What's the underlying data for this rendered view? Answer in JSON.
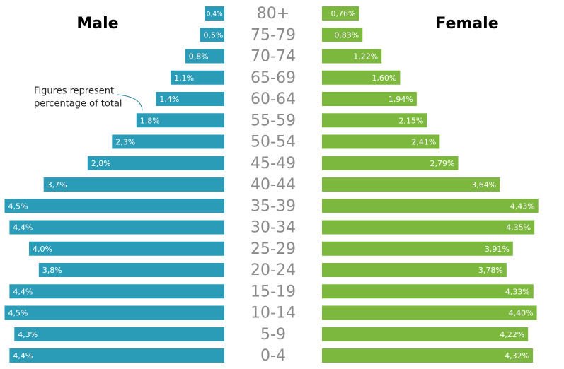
{
  "chart_data": {
    "type": "pyramid",
    "categories": [
      "80+",
      "75-79",
      "70-74",
      "65-69",
      "60-64",
      "55-59",
      "50-54",
      "45-49",
      "40-44",
      "35-39",
      "30-34",
      "25-29",
      "20-24",
      "15-19",
      "10-14",
      "5-9",
      "0-4"
    ],
    "series": [
      {
        "name": "Male",
        "color": "#2b9cb8",
        "values": [
          0.4,
          0.5,
          0.8,
          1.1,
          1.4,
          1.8,
          2.3,
          2.8,
          3.7,
          4.5,
          4.4,
          4.0,
          3.8,
          4.4,
          4.5,
          4.3,
          4.4
        ],
        "value_labels": [
          "0,4%",
          "0,5%",
          "0,8%",
          "1,1%",
          "1,4%",
          "1,8%",
          "2,3%",
          "2,8%",
          "3,7%",
          "4,5%",
          "4,4%",
          "4,0%",
          "3,8%",
          "4,4%",
          "4,5%",
          "4,3%",
          "4,4%"
        ]
      },
      {
        "name": "Female",
        "color": "#7cb83e",
        "values": [
          0.76,
          0.83,
          1.22,
          1.6,
          1.94,
          2.15,
          2.41,
          2.79,
          3.64,
          4.43,
          4.35,
          3.91,
          3.78,
          4.33,
          4.4,
          4.22,
          4.32
        ],
        "value_labels": [
          "0,76%",
          "0,83%",
          "1,22%",
          "1,60%",
          "1,94%",
          "2,15%",
          "2,41%",
          "2,79%",
          "3,64%",
          "4,43%",
          "4,35%",
          "3,91%",
          "3,78%",
          "4,33%",
          "4,40%",
          "4,22%",
          "4,32%"
        ]
      }
    ],
    "annotation": [
      "Figures represent",
      "percentage of total"
    ]
  }
}
